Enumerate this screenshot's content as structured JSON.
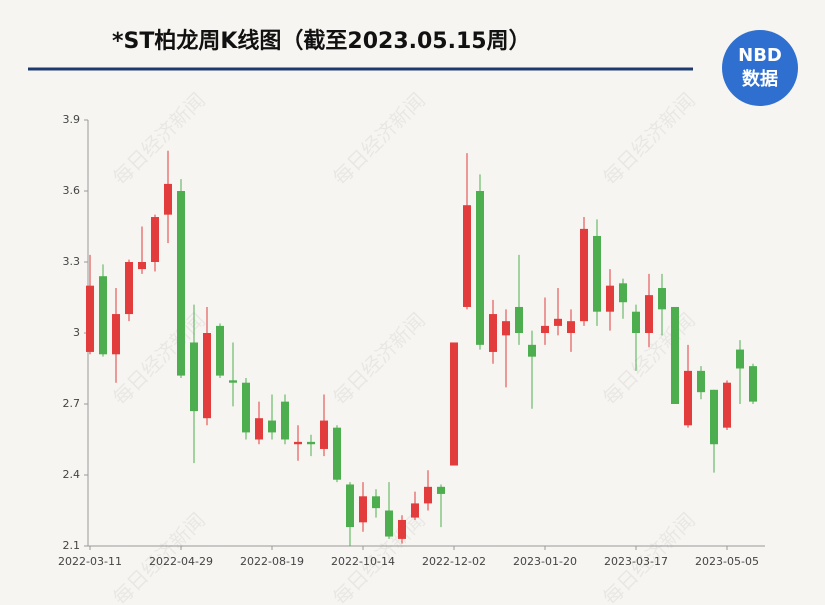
{
  "chart_data": {
    "type": "candlestick",
    "title": "*ST柏龙周K线图（截至2023.05.15周）",
    "logo": {
      "line1": "NBD",
      "line2": "数据"
    },
    "watermark": "每日经济新闻",
    "categories": [
      "2022-03-11",
      null,
      null,
      null,
      null,
      null,
      null,
      "2022-04-29",
      null,
      null,
      null,
      null,
      null,
      null,
      "2022-08-19",
      null,
      null,
      null,
      null,
      null,
      null,
      "2022-10-14",
      null,
      null,
      null,
      null,
      null,
      null,
      "2022-12-02",
      null,
      null,
      null,
      null,
      null,
      null,
      "2023-01-20",
      null,
      null,
      null,
      null,
      null,
      null,
      "2023-03-17",
      null,
      null,
      null,
      null,
      null,
      null,
      "2023-05-05",
      null,
      null
    ],
    "open": [
      2.92,
      3.24,
      2.91,
      3.08,
      3.27,
      3.3,
      3.5,
      3.6,
      2.96,
      2.64,
      3.03,
      2.8,
      2.79,
      2.55,
      2.63,
      2.71,
      2.53,
      2.54,
      2.51,
      2.6,
      2.36,
      2.2,
      2.31,
      2.25,
      2.13,
      2.22,
      2.28,
      2.35,
      2.44,
      3.11,
      3.6,
      2.92,
      2.99,
      3.11,
      2.95,
      3.0,
      3.03,
      3.0,
      3.05,
      3.41,
      3.09,
      3.21,
      3.09,
      3.0,
      3.19,
      3.11,
      2.61,
      2.84,
      2.76,
      2.6,
      2.93,
      2.86
    ],
    "high": [
      3.33,
      3.29,
      3.19,
      3.31,
      3.45,
      3.5,
      3.77,
      3.65,
      3.12,
      3.11,
      3.04,
      2.96,
      2.81,
      2.71,
      2.74,
      2.74,
      2.61,
      2.57,
      2.74,
      2.61,
      2.37,
      2.37,
      2.34,
      2.37,
      2.23,
      2.33,
      2.42,
      2.36,
      2.96,
      3.76,
      3.67,
      3.14,
      3.1,
      3.33,
      3.01,
      3.15,
      3.19,
      3.1,
      3.49,
      3.48,
      3.27,
      3.23,
      3.12,
      3.25,
      3.25,
      3.11,
      2.95,
      2.86,
      2.76,
      2.8,
      2.97,
      2.87
    ],
    "low": [
      2.91,
      2.9,
      2.79,
      3.05,
      3.25,
      3.26,
      3.38,
      2.81,
      2.45,
      2.61,
      2.81,
      2.69,
      2.55,
      2.53,
      2.55,
      2.53,
      2.46,
      2.48,
      2.48,
      2.37,
      2.1,
      2.16,
      2.22,
      2.13,
      2.11,
      2.21,
      2.25,
      2.18,
      2.44,
      3.1,
      2.93,
      2.87,
      2.77,
      2.95,
      2.68,
      2.95,
      2.99,
      2.92,
      3.03,
      3.03,
      3.01,
      3.06,
      2.84,
      2.94,
      2.99,
      2.7,
      2.6,
      2.72,
      2.41,
      2.59,
      2.7,
      2.7
    ],
    "close": [
      3.2,
      2.91,
      3.08,
      3.3,
      3.3,
      3.49,
      3.63,
      2.82,
      2.67,
      3.0,
      2.82,
      2.79,
      2.58,
      2.64,
      2.58,
      2.55,
      2.54,
      2.53,
      2.63,
      2.38,
      2.18,
      2.31,
      2.26,
      2.14,
      2.21,
      2.28,
      2.35,
      2.32,
      2.96,
      3.54,
      2.95,
      3.08,
      3.05,
      3.0,
      2.9,
      3.03,
      3.06,
      3.05,
      3.44,
      3.09,
      3.2,
      3.13,
      3.0,
      3.16,
      3.1,
      2.7,
      2.84,
      2.75,
      2.53,
      2.79,
      2.85,
      2.71
    ],
    "up_color": "#e23c3c",
    "down_color": "#4cae4f",
    "ylim": [
      2.1,
      3.9
    ],
    "yticks": [
      2.1,
      2.4,
      2.7,
      3,
      3.3,
      3.6,
      3.9
    ],
    "grid": false
  }
}
